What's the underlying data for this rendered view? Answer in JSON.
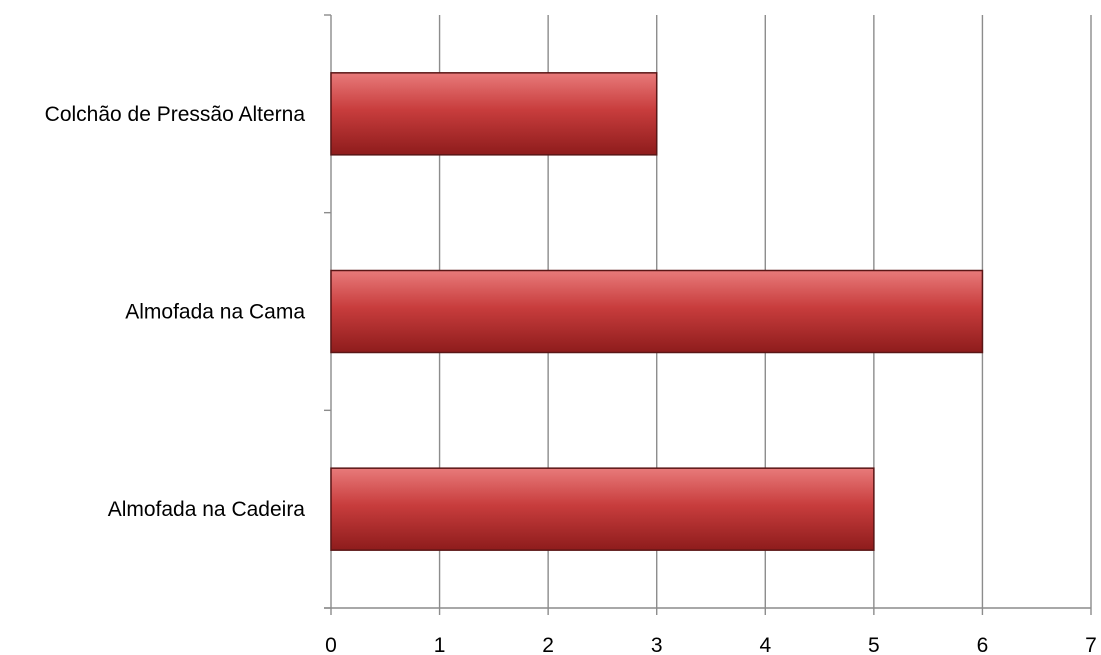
{
  "chart_data": {
    "type": "bar",
    "orientation": "horizontal",
    "title": "",
    "xlabel": "",
    "ylabel": "",
    "categories": [
      "Colchão de Pressão Alterna",
      "Almofada na Cama",
      "Almofada na Cadeira"
    ],
    "values": [
      3,
      6,
      5
    ],
    "xlim": [
      0,
      7
    ],
    "x_ticks": [
      "0",
      "1",
      "2",
      "3",
      "4",
      "5",
      "6",
      "7"
    ],
    "grid": "vertical",
    "legend": "none",
    "colors": {
      "bar_top": "#e87a7a",
      "bar_mid": "#c83d3d",
      "bar_bottom": "#8e1c1c",
      "bar_edge": "#5a1616",
      "grid": "#8c8c8c"
    }
  }
}
